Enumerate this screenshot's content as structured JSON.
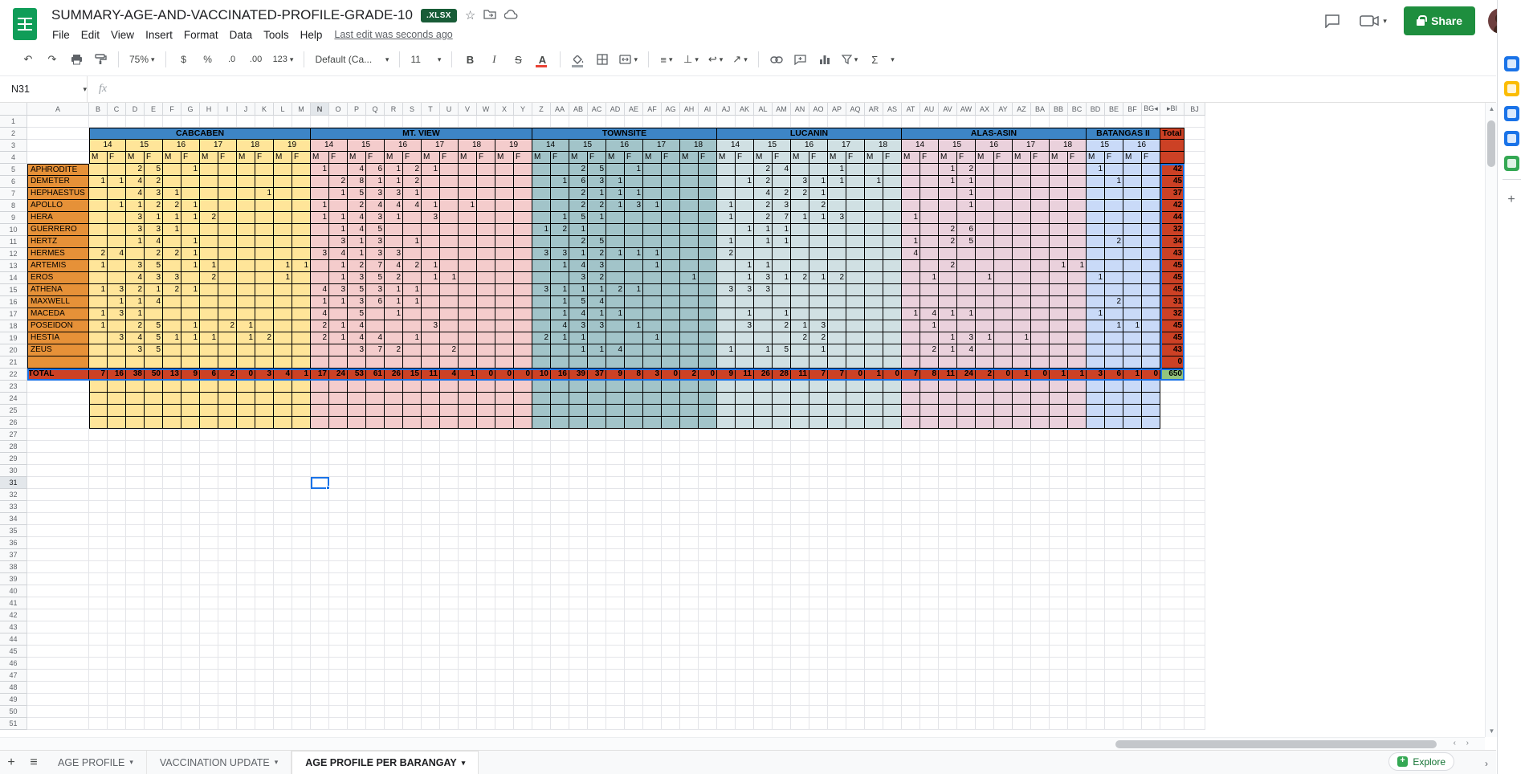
{
  "titlebar": {
    "title": "SUMMARY-AGE-AND-VACCINATED-PROFILE-GRADE-10",
    "badge": ".XLSX"
  },
  "menubar": {
    "items": [
      "File",
      "Edit",
      "View",
      "Insert",
      "Format",
      "Data",
      "Tools",
      "Help"
    ],
    "last_edit": "Last edit was seconds ago"
  },
  "toolbar": {
    "zoom": "75%",
    "currency": "$",
    "percent": "%",
    "dec_decrease": ".0",
    "dec_increase": ".00",
    "more_formats": "123",
    "font": "Default (Ca...",
    "font_size": "11",
    "bold": "B",
    "italic": "I",
    "strikethrough": "S",
    "text_color": "A",
    "functions": "Σ",
    "collapse": "^"
  },
  "formula_bar": {
    "name_box": "N31",
    "fx": "fx"
  },
  "share_label": "Share",
  "sheet": {
    "active_cell": "N31",
    "active_col": "N",
    "active_row": 31,
    "row_count": 51,
    "col_letters": [
      "A",
      "B",
      "C",
      "D",
      "E",
      "F",
      "G",
      "H",
      "I",
      "J",
      "K",
      "L",
      "M",
      "N",
      "O",
      "P",
      "Q",
      "R",
      "S",
      "T",
      "U",
      "V",
      "W",
      "X",
      "Y",
      "Z",
      "AA",
      "AB",
      "AC",
      "AD",
      "AE",
      "AF",
      "AG",
      "AH",
      "AI",
      "AJ",
      "AK",
      "AL",
      "AM",
      "AN",
      "AO",
      "AP",
      "AQ",
      "AR",
      "AS",
      "AT",
      "AU",
      "AV",
      "AW",
      "AX",
      "AY",
      "AZ",
      "BA",
      "BB",
      "BC",
      "BD",
      "BE",
      "BF",
      "BG",
      "BI",
      "BJ"
    ],
    "hidden_note": {
      "left_marker": "BG◂",
      "right_marker": "▸BI"
    },
    "gender_labels": [
      "M",
      "F"
    ],
    "total_header": "Total",
    "colors": {
      "header_blue": "#3d85c6",
      "cabcaben": "#ffe599",
      "mtview": "#f4cccc",
      "townsite": "#a2c4c9",
      "lucanin": "#d0e0e3",
      "alasasin": "#ead1dc",
      "batangas": "#c9daf8",
      "name_orange": "#e69138",
      "total_red": "#cc4125",
      "grand_green": "#93c47d",
      "selection_blue": "#1a73e8"
    },
    "regions": [
      {
        "name": "CABCABEN",
        "color": "#ffe599",
        "ages": [
          "14",
          "15",
          "16",
          "17",
          "18",
          "19"
        ]
      },
      {
        "name": "MT. VIEW",
        "color": "#f4cccc",
        "ages": [
          "14",
          "15",
          "16",
          "17",
          "18",
          "19"
        ]
      },
      {
        "name": "TOWNSITE",
        "color": "#a2c4c9",
        "ages": [
          "14",
          "15",
          "16",
          "17",
          "18"
        ]
      },
      {
        "name": "LUCANIN",
        "color": "#d0e0e3",
        "ages": [
          "14",
          "15",
          "16",
          "17",
          "18"
        ]
      },
      {
        "name": "ALAS-ASIN",
        "color": "#ead1dc",
        "ages": [
          "14",
          "15",
          "16",
          "17",
          "18"
        ]
      },
      {
        "name": "BATANGAS II",
        "color": "#c9daf8",
        "ages": [
          "15",
          "16"
        ]
      }
    ],
    "rows": [
      {
        "name": "APHRODITE",
        "g": [
          ",,2,5,,1,,,,,,",
          "1,,4,6,1,2,1,,,,,",
          ",,2,5,,1,,,,",
          ",,2,4,,,1,,,",
          ",,1,2,,,,,,",
          "1,,,"
        ],
        "total": "42"
      },
      {
        "name": "DEMETER",
        "g": [
          "1,1,4,2,,,,,,,,",
          ",2,8,1,1,2,,,,,,",
          ",1,6,3,1,,,,,",
          ",1,2,,3,1,1,,1,",
          ",,1,1,,,,,,",
          ",1,,"
        ],
        "total": "45"
      },
      {
        "name": "HEPHAESTUS",
        "g": [
          ",,4,3,1,,,,,1,,",
          ",1,5,3,3,1,,,,,,",
          ",,2,1,1,1,,,,",
          ",,4,2,2,1,,,,",
          ",,,1,,,,,,",
          ",,,"
        ],
        "total": "37"
      },
      {
        "name": "APOLLO",
        "g": [
          ",1,1,2,2,1,,,,,,",
          "1,,2,4,4,4,1,,1,,,",
          ",,2,2,1,3,1,,,",
          "1,,2,3,,2,,,,",
          ",,,1,,,,,,",
          ",,,"
        ],
        "total": "42"
      },
      {
        "name": "HERA",
        "g": [
          ",,3,1,1,1,2,,,,,",
          "1,1,4,3,1,,3,,,,,",
          ",1,5,1,,,,,,",
          "1,,2,7,1,1,3,,,",
          "1,,,,,,,,,",
          ",,,"
        ],
        "total": "44"
      },
      {
        "name": "GUERRERO",
        "g": [
          ",,3,3,1,,,,,,,",
          ",1,4,5,,,,,,,,",
          "1,2,1,,,,,,,",
          ",1,1,1,,,,,,",
          ",,2,6,,,,,,",
          ",,,"
        ],
        "total": "32"
      },
      {
        "name": "HERTZ",
        "g": [
          ",,1,4,,1,,,,,,",
          ",3,1,3,,1,,,,,,",
          ",,2,5,,,,,,",
          "1,,1,1,,,,,,",
          "1,,2,5,,,,,,",
          ",2,,"
        ],
        "total": "34"
      },
      {
        "name": "HERMES",
        "g": [
          "2,4,,2,2,1,,,,,,",
          "3,4,1,3,3,,,,,,,",
          "3,3,1,2,1,1,1,,,",
          "2,,,,,,,,,",
          "4,,,,,,,,,",
          ",,,"
        ],
        "total": "43"
      },
      {
        "name": "ARTEMIS",
        "g": [
          "1,,3,5,,1,1,,,,1,1",
          ",1,2,7,4,2,1,,,,,",
          ",1,4,3,,,1,,,",
          ",1,1,,,,,,,",
          ",,2,,,,,,1,1",
          ",,,"
        ],
        "total": "45"
      },
      {
        "name": "EROS",
        "g": [
          ",,4,3,3,,2,,,,1,",
          ",1,3,5,2,,1,1,,,,",
          ",,3,2,,,,,1,",
          ",1,3,1,2,1,2,,,",
          ",1,,,1,,,,,",
          "1,,,"
        ],
        "total": "45"
      },
      {
        "name": "ATHENA",
        "g": [
          "1,3,2,1,2,1,,,,,,",
          "4,3,5,3,1,1,,,,,,",
          "3,1,1,1,2,1,,,,",
          "3,3,3,,,,,,,",
          ",,,,,,,,,",
          ",,,"
        ],
        "total": "45"
      },
      {
        "name": "MAXWELL",
        "g": [
          ",1,1,4,,,,,,,,",
          "1,1,3,6,1,1,,,,,,",
          ",1,5,4,,,,,,",
          ",,,,,,,,,",
          ",,,,,,,,,",
          ",2,,"
        ],
        "total": "31"
      },
      {
        "name": "MACEDA",
        "g": [
          "1,3,1,,,,,,,,,",
          "4,,5,,1,,,,,,,",
          ",1,4,1,1,,,,,",
          ",1,,1,,,,,,",
          "1,4,1,1,,,,,,",
          "1,,,"
        ],
        "total": "32"
      },
      {
        "name": "POSEIDON",
        "g": [
          "1,,2,5,,1,,2,1,,,",
          "2,1,4,,,,3,,,,,",
          ",4,3,3,,1,,,,",
          ",3,,2,1,3,,,,",
          ",1,,,,,,,,",
          ",1,1,"
        ],
        "total": "45"
      },
      {
        "name": "HESTIA",
        "g": [
          ",3,4,5,1,1,1,,1,2,,",
          "2,1,4,4,,1,,,,,,",
          "2,1,1,,,,1,,,",
          ",,,,2,2,,,,",
          ",,1,3,1,,1,,,",
          ",,,"
        ],
        "total": "45"
      },
      {
        "name": "ZEUS",
        "g": [
          ",,3,5,,,,,,,,",
          ",,3,7,2,,,2,,,,",
          ",,1,1,4,,,,,",
          "1,,1,5,,1,,,,",
          ",2,1,4,,,,,,",
          ",,,"
        ],
        "total": "43"
      },
      {
        "name": "",
        "g": [
          ",,,,,,,,,,,",
          ",,,,,,,,,,,",
          ",,,,,,,,,",
          ",,,,,,,,,",
          ",,,,,,,,,",
          ",,,"
        ],
        "total": "0"
      }
    ],
    "total_row": {
      "label": "TOTAL",
      "g": [
        "7,16,38,50,13,9,6,2,0,3,4,1",
        "17,24,53,61,26,15,11,4,1,0,0,0",
        "10,16,39,37,9,8,3,0,2,0",
        "9,11,26,28,11,7,7,0,1,0",
        "7,8,11,24,2,0,1,0,1,1",
        "3,6,1,0"
      ],
      "grand": "650"
    }
  },
  "tabs": {
    "items": [
      {
        "label": "AGE PROFILE",
        "active": false
      },
      {
        "label": "VACCINATION UPDATE",
        "active": false
      },
      {
        "label": "AGE PROFILE PER BARANGAY",
        "active": true
      }
    ],
    "explore": "Explore"
  },
  "rail": {
    "icons": [
      {
        "name": "calendar-icon",
        "color": "#1a73e8"
      },
      {
        "name": "keep-icon",
        "color": "#fbbc04"
      },
      {
        "name": "tasks-icon",
        "color": "#1a73e8"
      },
      {
        "name": "contacts-icon",
        "color": "#1a73e8"
      },
      {
        "name": "maps-icon",
        "color": "#34a853"
      }
    ]
  }
}
